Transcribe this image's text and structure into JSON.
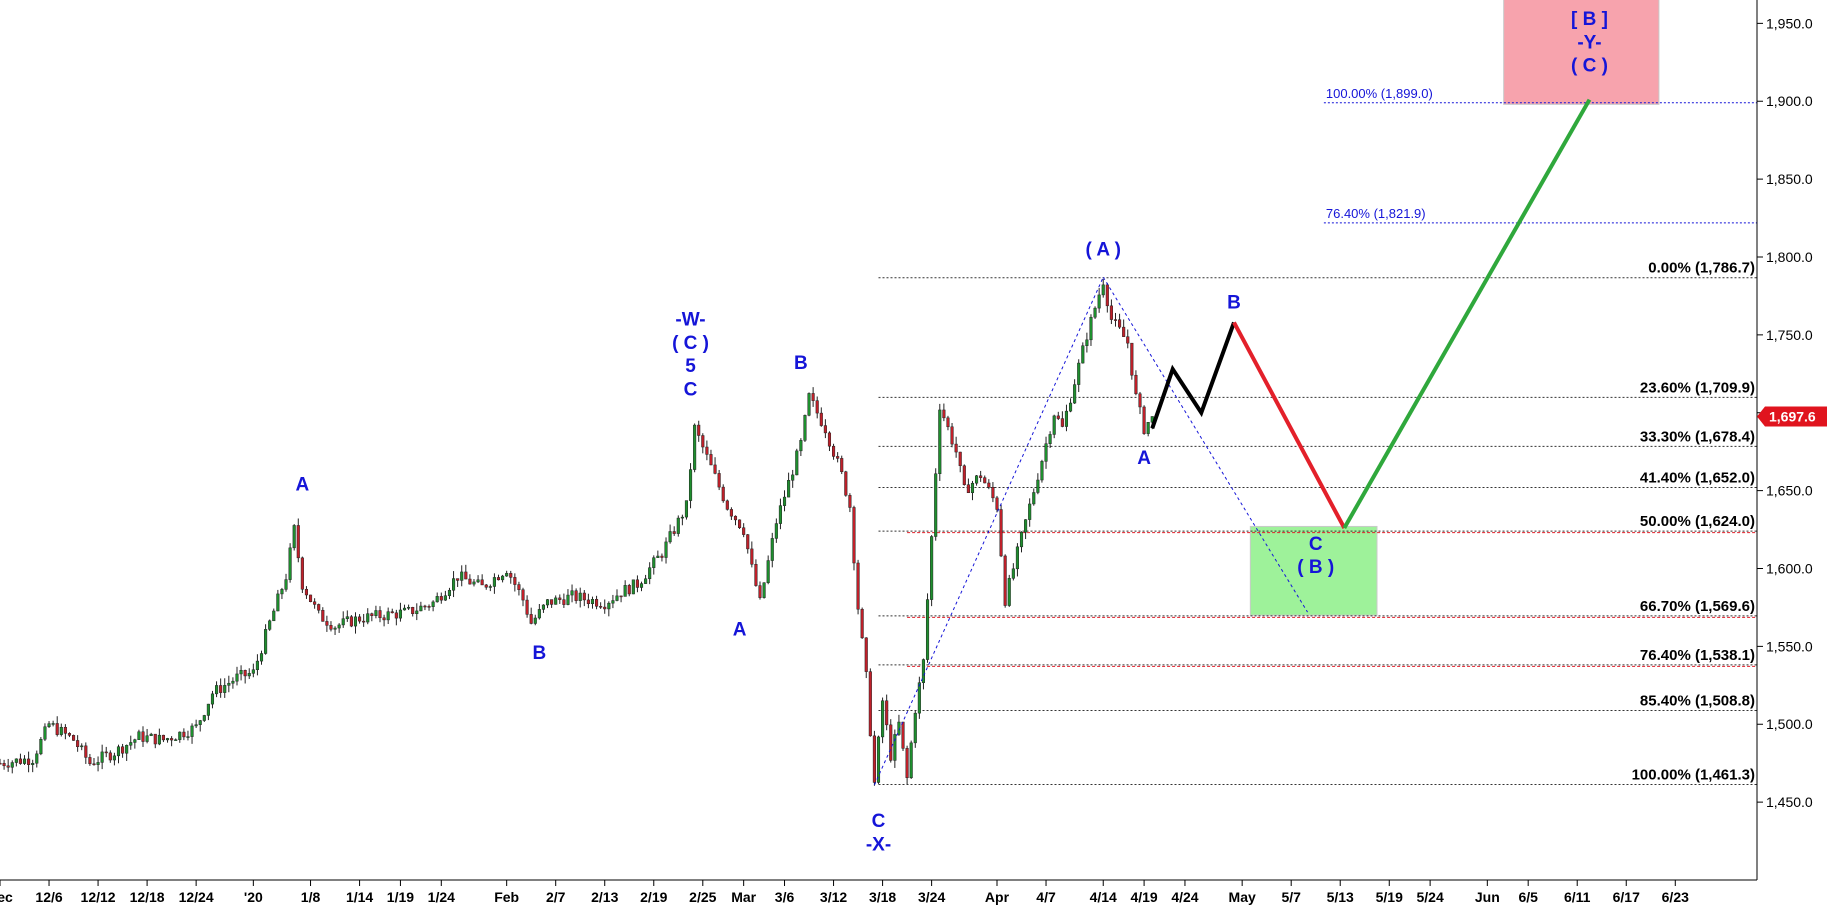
{
  "chart_data": {
    "type": "candlestick",
    "y_axis": {
      "ticks": [
        1450,
        1500,
        1550,
        1600,
        1650,
        1700,
        1750,
        1800,
        1850,
        1900,
        1950
      ],
      "tick_labels": [
        "1,450.0",
        "1,500.0",
        "1,550.0",
        "1,600.0",
        "1,650.0",
        "1,700.0",
        "1,750.0",
        "1,800.0",
        "1,850.0",
        "1,900.0",
        "1,950.0"
      ],
      "range": [
        1400,
        1965
      ]
    },
    "x_axis": {
      "labels": [
        "Dec",
        "12/6",
        "12/12",
        "12/18",
        "12/24",
        "'20",
        "1/8",
        "1/14",
        "1/19",
        "1/24",
        "Feb",
        "2/7",
        "2/13",
        "2/19",
        "2/25",
        "Mar",
        "3/6",
        "3/12",
        "3/18",
        "3/24",
        "Apr",
        "4/7",
        "4/14",
        "4/19",
        "4/24",
        "May",
        "5/7",
        "5/13",
        "5/19",
        "5/24",
        "Jun",
        "6/5",
        "6/11",
        "6/17",
        "6/23"
      ],
      "label_day_index": [
        0,
        6,
        12,
        18,
        24,
        31,
        38,
        44,
        49,
        54,
        62,
        68,
        74,
        80,
        86,
        91,
        96,
        102,
        108,
        114,
        122,
        128,
        135,
        140,
        145,
        152,
        158,
        164,
        170,
        175,
        182,
        187,
        193,
        199,
        205
      ],
      "day_range": [
        0,
        215
      ]
    },
    "last_price": {
      "label": "1,697.6",
      "value": 1697.6
    },
    "price_path": [
      [
        0,
        1475
      ],
      [
        4,
        1478
      ],
      [
        6,
        1500
      ],
      [
        9,
        1490
      ],
      [
        11,
        1475
      ],
      [
        14,
        1482
      ],
      [
        17,
        1492
      ],
      [
        20,
        1490
      ],
      [
        24,
        1498
      ],
      [
        26,
        1520
      ],
      [
        29,
        1530
      ],
      [
        31,
        1533
      ],
      [
        33,
        1565
      ],
      [
        35,
        1595
      ],
      [
        36,
        1625
      ],
      [
        37,
        1590
      ],
      [
        39,
        1570
      ],
      [
        41,
        1563
      ],
      [
        44,
        1568
      ],
      [
        47,
        1570
      ],
      [
        50,
        1572
      ],
      [
        53,
        1578
      ],
      [
        56,
        1595
      ],
      [
        59,
        1588
      ],
      [
        62,
        1600
      ],
      [
        64,
        1580
      ],
      [
        65,
        1565
      ],
      [
        67,
        1578
      ],
      [
        70,
        1582
      ],
      [
        74,
        1578
      ],
      [
        76,
        1585
      ],
      [
        78,
        1590
      ],
      [
        81,
        1610
      ],
      [
        84,
        1640
      ],
      [
        85,
        1690
      ],
      [
        87,
        1665
      ],
      [
        89,
        1640
      ],
      [
        91,
        1625
      ],
      [
        92,
        1600
      ],
      [
        93,
        1578
      ],
      [
        95,
        1630
      ],
      [
        98,
        1680
      ],
      [
        99,
        1710
      ],
      [
        101,
        1690
      ],
      [
        103,
        1660
      ],
      [
        104,
        1640
      ],
      [
        105,
        1575
      ],
      [
        106,
        1530
      ],
      [
        107,
        1462
      ],
      [
        108,
        1515
      ],
      [
        109,
        1480
      ],
      [
        110,
        1500
      ],
      [
        111,
        1465
      ],
      [
        112,
        1510
      ],
      [
        113,
        1540
      ],
      [
        114,
        1620
      ],
      [
        115,
        1705
      ],
      [
        117,
        1675
      ],
      [
        118,
        1650
      ],
      [
        120,
        1660
      ],
      [
        122,
        1640
      ],
      [
        123,
        1580
      ],
      [
        125,
        1620
      ],
      [
        127,
        1660
      ],
      [
        129,
        1700
      ],
      [
        130,
        1690
      ],
      [
        132,
        1730
      ],
      [
        133,
        1750
      ],
      [
        135,
        1785
      ],
      [
        136,
        1760
      ],
      [
        138,
        1745
      ],
      [
        139,
        1710
      ],
      [
        140,
        1690
      ],
      [
        141,
        1697.6
      ]
    ],
    "projection": [
      {
        "color": "#000000",
        "points": [
          [
            141,
            1690
          ],
          [
            143.5,
            1728
          ],
          [
            147,
            1700
          ],
          [
            151,
            1758
          ]
        ]
      },
      {
        "color": "#e3202a",
        "points": [
          [
            151,
            1758
          ],
          [
            164.5,
            1626
          ]
        ]
      },
      {
        "color": "#2fa83c",
        "points": [
          [
            164.5,
            1626
          ],
          [
            194.5,
            1901
          ]
        ]
      }
    ],
    "fib_levels": [
      {
        "label": "0.00% (1,786.7)",
        "value": 1786.7
      },
      {
        "label": "23.60% (1,709.9)",
        "value": 1709.9
      },
      {
        "label": "33.30% (1,678.4)",
        "value": 1678.4
      },
      {
        "label": "41.40% (1,652.0)",
        "value": 1652.0
      },
      {
        "label": "50.00% (1,624.0)",
        "value": 1624.0
      },
      {
        "label": "66.70% (1,569.6)",
        "value": 1569.6
      },
      {
        "label": "76.40% (1,538.1)",
        "value": 1538.1
      },
      {
        "label": "85.40% (1,508.8)",
        "value": 1508.8
      },
      {
        "label": "100.00% (1,461.3)",
        "value": 1461.3
      }
    ],
    "fib_extensions": [
      {
        "label": "100.00% (1,899.0)",
        "value": 1899.0
      },
      {
        "label": "76.40% (1,821.9)",
        "value": 1821.9
      }
    ],
    "wave_labels": [
      {
        "text": "A",
        "day": 37,
        "price": 1650
      },
      {
        "text": "B",
        "day": 66,
        "price": 1542
      },
      {
        "text": "-W-",
        "day": 84.5,
        "price": 1756
      },
      {
        "text": "( C )",
        "day": 84.5,
        "price": 1741
      },
      {
        "text": "5",
        "day": 84.5,
        "price": 1726
      },
      {
        "text": "C",
        "day": 84.5,
        "price": 1711
      },
      {
        "text": "A",
        "day": 90.5,
        "price": 1557
      },
      {
        "text": "B",
        "day": 98,
        "price": 1728
      },
      {
        "text": "C",
        "day": 107.5,
        "price": 1434
      },
      {
        "text": "-X-",
        "day": 107.5,
        "price": 1419
      },
      {
        "text": "( A )",
        "day": 135,
        "price": 1801
      },
      {
        "text": "A",
        "day": 140,
        "price": 1667
      },
      {
        "text": "B",
        "day": 151,
        "price": 1767
      },
      {
        "text": "C",
        "day": 161,
        "price": 1612
      },
      {
        "text": "( B )",
        "day": 161,
        "price": 1597
      },
      {
        "text": "[ B ]",
        "day": 194.5,
        "price": 1949
      },
      {
        "text": "-Y-",
        "day": 194.5,
        "price": 1934
      },
      {
        "text": "( C )",
        "day": 194.5,
        "price": 1919
      }
    ],
    "zones": [
      {
        "name": "green-zone",
        "day_range": [
          153,
          168.5
        ],
        "price_range": [
          1570,
          1627
        ],
        "color": "#9ef29a"
      },
      {
        "name": "red-zone",
        "day_range": [
          184,
          203
        ],
        "price_range": [
          1898,
          1968
        ],
        "color": "#f7a3ad"
      }
    ],
    "dotted_lines": [
      [
        [
          107,
          1461
        ],
        [
          135,
          1787
        ]
      ],
      [
        [
          135,
          1787
        ],
        [
          160,
          1572
        ]
      ]
    ]
  }
}
